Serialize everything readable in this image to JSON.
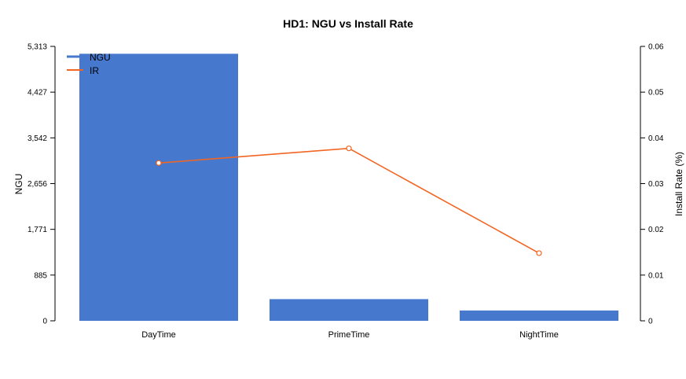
{
  "chart_data": {
    "type": "bar",
    "title": "HD1: NGU vs Install Rate",
    "categories": [
      "DayTime",
      "PrimeTime",
      "NightTime"
    ],
    "series": [
      {
        "name": "NGU",
        "type": "bar",
        "axis": "left",
        "color": "#4679cd",
        "values": [
          5170,
          420,
          200
        ]
      },
      {
        "name": "IR",
        "type": "line",
        "axis": "right",
        "color": "#f26522",
        "values": [
          0.0345,
          0.0377,
          0.0148
        ]
      }
    ],
    "ylabel": "NGU",
    "ylabel_right": "Install Rate (%)",
    "ylim": [
      0,
      5313
    ],
    "ylim_right": [
      0,
      0.06
    ],
    "yticks": [
      "0",
      "885",
      "1,771",
      "2,656",
      "3,542",
      "4,427",
      "5,313"
    ],
    "yticks_right": [
      "0",
      "0.01",
      "0.02",
      "0.03",
      "0.04",
      "0.05",
      "0.06"
    ],
    "legend_position": "top-left",
    "grid": false
  }
}
